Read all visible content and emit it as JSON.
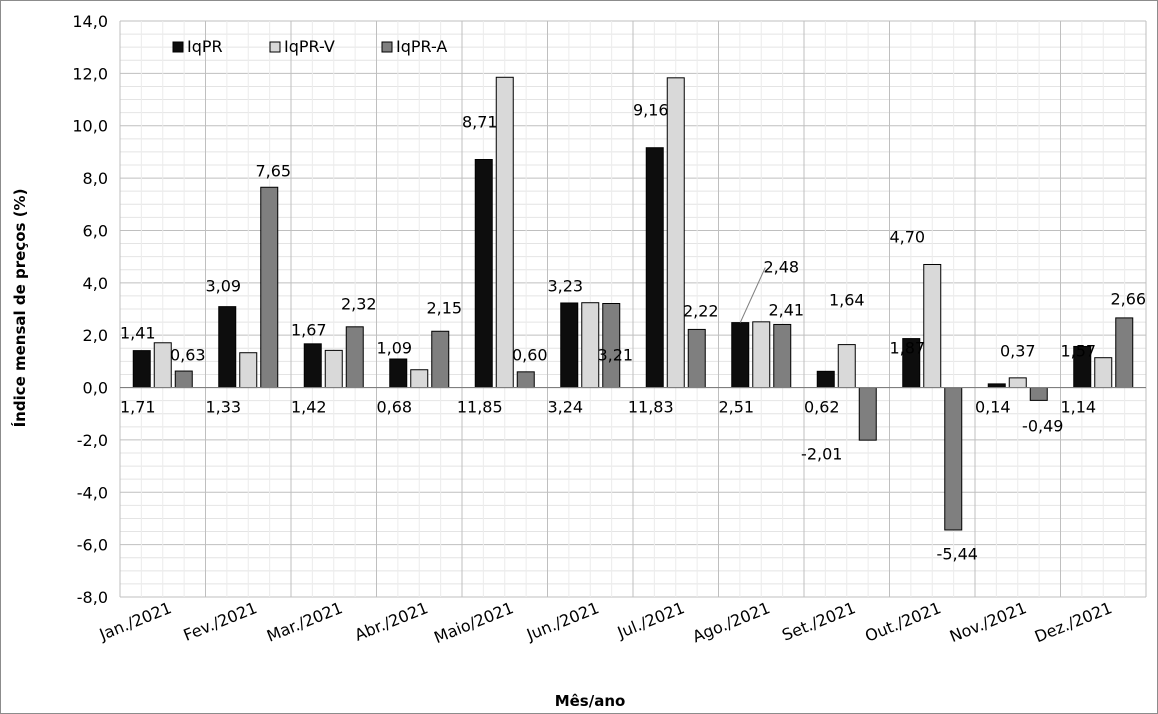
{
  "chart_data": {
    "type": "bar",
    "title": "",
    "xlabel": "Mês/ano",
    "ylabel": "Índice mensal de preços (%)",
    "ylim": [
      -8,
      14
    ],
    "ytick_step": 2,
    "ytick_labels": [
      "-8,0",
      "-6,0",
      "-4,0",
      "-2,0",
      "0,0",
      "2,0",
      "4,0",
      "6,0",
      "8,0",
      "10,0",
      "12,0",
      "14,0"
    ],
    "grid": true,
    "legend_position": "top-left",
    "categories": [
      "Jan./2021",
      "Fev./2021",
      "Mar./2021",
      "Abr./2021",
      "Maio/2021",
      "Jun./2021",
      "Jul./2021",
      "Ago./2021",
      "Set./2021",
      "Out./2021",
      "Nov./2021",
      "Dez./2021"
    ],
    "series": [
      {
        "name": "IqPR",
        "color": "#0d0d0d",
        "values": [
          1.41,
          3.09,
          1.67,
          1.09,
          8.71,
          3.23,
          9.16,
          2.48,
          0.62,
          1.87,
          0.14,
          1.57
        ],
        "labels": [
          "1,41",
          "3,09",
          "1,67",
          "1,09",
          "8,71",
          "3,23",
          "9,16",
          "2,48",
          "0,62",
          "1,87",
          "0,14",
          "1,57"
        ]
      },
      {
        "name": "IqPR-V",
        "color": "#d9d9d9",
        "values": [
          1.71,
          1.33,
          1.42,
          0.68,
          11.85,
          3.24,
          11.83,
          2.51,
          1.64,
          4.7,
          0.37,
          1.14
        ],
        "labels": [
          "1,71",
          "1,33",
          "1,42",
          "0,68",
          "11,85",
          "3,24",
          "11,83",
          "2,51",
          "1,64",
          "4,70",
          "0,37",
          "1,14"
        ]
      },
      {
        "name": "IqPR-A",
        "color": "#7f7f7f",
        "values": [
          0.63,
          7.65,
          2.32,
          2.15,
          0.6,
          3.21,
          2.22,
          2.41,
          -2.01,
          -5.44,
          -0.49,
          2.66
        ],
        "labels": [
          "0,63",
          "7,65",
          "2,32",
          "2,15",
          "0,60",
          "3,21",
          "2,22",
          "2,41",
          "-2,01",
          "-5,44",
          "-0,49",
          "2,66"
        ]
      }
    ]
  }
}
